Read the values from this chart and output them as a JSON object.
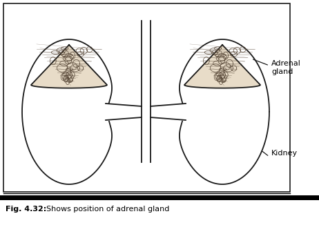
{
  "title_bold": "Fig. 4.32:",
  "title_rest": "  Shows position of adrenal gland",
  "label_adrenal": "Adrenal\ngland",
  "label_kidney": "Kidney",
  "bg_color": "#ffffff",
  "line_color": "#1a1a1a",
  "adrenal_fill": "#e8dcc8",
  "adrenal_dark": "#5a4a3a",
  "border_lw": 1.2
}
